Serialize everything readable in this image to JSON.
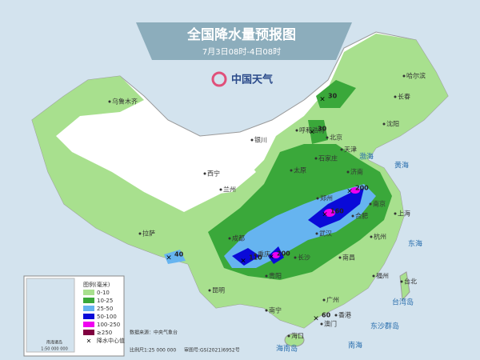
{
  "header": {
    "title": "全国降水量预报图",
    "subtitle": "7月3日08时-4日08时"
  },
  "logo": "中国天气",
  "legend": {
    "title": "图例(毫米)",
    "items": [
      {
        "label": "0-10",
        "color": "#a8e08e"
      },
      {
        "label": "10-25",
        "color": "#3aa83a"
      },
      {
        "label": "25-50",
        "color": "#66b4f0"
      },
      {
        "label": "50-100",
        "color": "#0a0ad8"
      },
      {
        "label": "100-250",
        "color": "#f000f0"
      },
      {
        "label": "≥250",
        "color": "#800040"
      }
    ],
    "center_label": "降水中心值"
  },
  "cities": [
    "乌鲁木齐",
    "哈尔滨",
    "长春",
    "沈阳",
    "呼和浩特",
    "北京",
    "天津",
    "石家庄",
    "太原",
    "济南",
    "银川",
    "西宁",
    "兰州",
    "郑州",
    "合肥",
    "南京",
    "上海",
    "杭州",
    "武汉",
    "拉萨",
    "成都",
    "重庆",
    "贵阳",
    "长沙",
    "南昌",
    "福州",
    "台北",
    "昆明",
    "南宁",
    "广州",
    "香港",
    "澳门",
    "海口"
  ],
  "centers": [
    "30",
    "30",
    "200",
    "160",
    "110",
    "200",
    "40",
    "60"
  ],
  "seas": [
    "渤海",
    "黄海",
    "东海",
    "南海",
    "台湾岛",
    "东沙群岛",
    "海南岛"
  ],
  "inset": {
    "label": "南海诸岛",
    "scale": "1:50 000 000"
  },
  "footer": {
    "source": "数据来源：中央气象台",
    "scale": "比例尺1:25 000 000",
    "approval": "审图号:GS(2021)6952号"
  }
}
